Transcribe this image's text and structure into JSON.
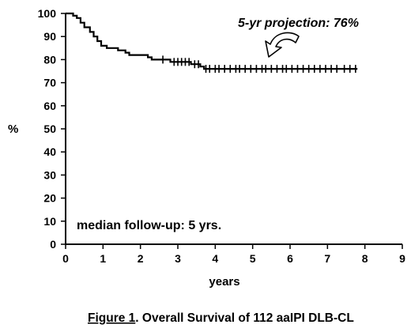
{
  "chart_data": {
    "type": "line",
    "title": "",
    "caption_prefix": "Figure 1",
    "caption_rest": ". Overall Survival of 112 aaIPI DLB-CL",
    "xlabel": "years",
    "ylabel": "%",
    "xlim": [
      0,
      9
    ],
    "ylim": [
      0,
      100
    ],
    "x_ticks": [
      "0",
      "1",
      "2",
      "3",
      "4",
      "5",
      "6",
      "7",
      "8",
      "9"
    ],
    "y_ticks": [
      "0",
      "10",
      "20",
      "30",
      "40",
      "50",
      "60",
      "70",
      "80",
      "90",
      "100"
    ],
    "grid": false,
    "annotations": {
      "projection": "5-yr projection: 76%",
      "followup": "median follow-up: 5 yrs."
    },
    "series": [
      {
        "step_points": [
          [
            0,
            100
          ],
          [
            0.2,
            100
          ],
          [
            0.2,
            99
          ],
          [
            0.3,
            99
          ],
          [
            0.3,
            98
          ],
          [
            0.4,
            98
          ],
          [
            0.4,
            96
          ],
          [
            0.5,
            96
          ],
          [
            0.5,
            94
          ],
          [
            0.65,
            94
          ],
          [
            0.65,
            92
          ],
          [
            0.75,
            92
          ],
          [
            0.75,
            90
          ],
          [
            0.85,
            90
          ],
          [
            0.85,
            88
          ],
          [
            0.95,
            88
          ],
          [
            0.95,
            86
          ],
          [
            1.1,
            86
          ],
          [
            1.1,
            85
          ],
          [
            1.4,
            85
          ],
          [
            1.4,
            84
          ],
          [
            1.6,
            84
          ],
          [
            1.6,
            83
          ],
          [
            1.7,
            83
          ],
          [
            1.7,
            82
          ],
          [
            2.2,
            82
          ],
          [
            2.2,
            81
          ],
          [
            2.3,
            81
          ],
          [
            2.3,
            80
          ],
          [
            2.8,
            80
          ],
          [
            2.8,
            79
          ],
          [
            3.35,
            79
          ],
          [
            3.35,
            78
          ],
          [
            3.6,
            78
          ],
          [
            3.6,
            77
          ],
          [
            3.7,
            77
          ],
          [
            3.7,
            76
          ],
          [
            7.8,
            76
          ]
        ],
        "censor_x": [
          2.6,
          2.9,
          3.0,
          3.1,
          3.2,
          3.3,
          3.45,
          3.55,
          3.75,
          3.85,
          4.0,
          4.1,
          4.25,
          4.4,
          4.55,
          4.65,
          4.8,
          4.95,
          5.1,
          5.25,
          5.35,
          5.5,
          5.65,
          5.8,
          5.9,
          6.05,
          6.2,
          6.35,
          6.5,
          6.65,
          6.8,
          6.95,
          7.1,
          7.25,
          7.45,
          7.6,
          7.75
        ]
      }
    ]
  }
}
